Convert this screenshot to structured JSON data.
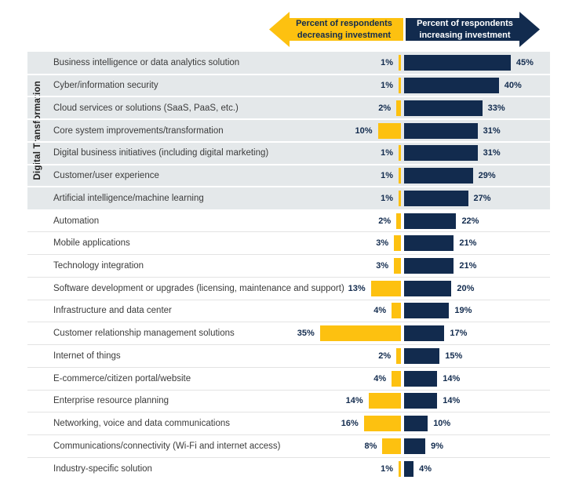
{
  "colors": {
    "decrease": "#FDC110",
    "increase": "#122B4E",
    "group_band": "#E4E8EA",
    "separator_light": "#E3E3E3",
    "separator_on_band": "#FFFFFF",
    "category_text": "#3B3B3B",
    "value_text": "#122B4E"
  },
  "header": {
    "left_arrow": {
      "line1": "Percent of respondents",
      "line2": "decreasing investment",
      "color": "#FDC110",
      "text_color": "#122B4E"
    },
    "right_arrow": {
      "line1": "Percent of respondents",
      "line2": "increasing investment",
      "color": "#122B4E",
      "text_color": "#FFFFFF"
    }
  },
  "group": {
    "label": "Digital Transformation",
    "row_start": 0,
    "row_end": 6
  },
  "chart_data": {
    "type": "bar",
    "orientation": "diverging-horizontal",
    "title": "",
    "value_suffix": "%",
    "legend_position": "top",
    "grid": false,
    "categories": [
      "Business intelligence or data analytics solution",
      "Cyber/information security",
      "Cloud services or solutions (SaaS, PaaS, etc.)",
      "Core system improvements/transformation",
      "Digital business initiatives (including digital marketing)",
      "Customer/user experience",
      "Artificial intelligence/machine learning",
      "Automation",
      "Mobile applications",
      "Technology integration",
      "Software development or upgrades (licensing, maintenance and support)",
      "Infrastructure and data center",
      "Customer relationship management solutions",
      "Internet of things",
      "E-commerce/citizen portal/website",
      "Enterprise resource planning",
      "Networking, voice and data communications",
      "Communications/connectivity (Wi-Fi and internet access)",
      "Industry-specific solution"
    ],
    "series": [
      {
        "name": "Percent of respondents decreasing investment",
        "color": "#FDC110",
        "values": [
          1,
          1,
          2,
          10,
          1,
          1,
          1,
          2,
          3,
          3,
          13,
          4,
          35,
          2,
          4,
          14,
          16,
          8,
          1
        ]
      },
      {
        "name": "Percent of respondents increasing investment",
        "color": "#122B4E",
        "values": [
          45,
          40,
          33,
          31,
          31,
          29,
          27,
          22,
          21,
          21,
          20,
          19,
          17,
          15,
          14,
          14,
          10,
          9,
          4
        ]
      }
    ],
    "group_label": "Digital Transformation",
    "grouped_rows": [
      0,
      1,
      2,
      3,
      4,
      5,
      6
    ]
  }
}
